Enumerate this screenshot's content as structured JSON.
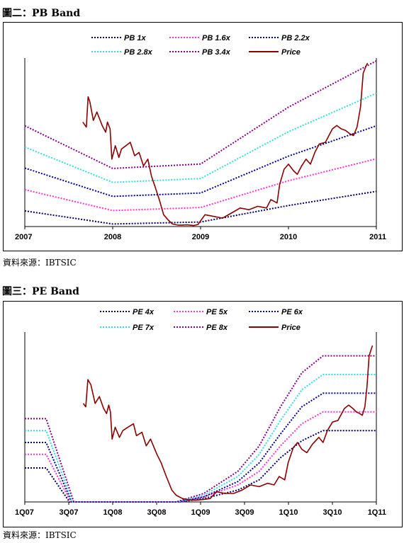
{
  "figures": [
    {
      "title": "圖二：PB Band",
      "source": "資料來源：IBTSIC"
    },
    {
      "title": "圖三：PE Band",
      "source": "資料來源：IBTSIC"
    }
  ],
  "chart_data": [
    {
      "type": "line",
      "title": "圖二：PB Band",
      "x_ticks": [
        "2007",
        "2008",
        "2009",
        "2010",
        "2011"
      ],
      "x_range": [
        2007.0,
        2011.0
      ],
      "y_ticks": [],
      "legend_position": "top",
      "series": [
        {
          "name": "PB 1x",
          "color": "#000066",
          "style": "dotted",
          "points": [
            [
              2007.0,
              0.093
            ],
            [
              2008.0,
              0.015
            ],
            [
              2009.0,
              0.027
            ],
            [
              2010.0,
              0.125
            ],
            [
              2011.0,
              0.209
            ]
          ]
        },
        {
          "name": "PB 1.6x",
          "color": "#ff33cc",
          "style": "dotted",
          "points": [
            [
              2007.0,
              0.219
            ],
            [
              2008.0,
              0.095
            ],
            [
              2009.0,
              0.113
            ],
            [
              2010.0,
              0.272
            ],
            [
              2011.0,
              0.402
            ]
          ]
        },
        {
          "name": "PB 2.2x",
          "color": "#000099",
          "style": "dotted",
          "points": [
            [
              2007.0,
              0.347
            ],
            [
              2008.0,
              0.179
            ],
            [
              2009.0,
              0.199
            ],
            [
              2010.0,
              0.418
            ],
            [
              2011.0,
              0.598
            ]
          ]
        },
        {
          "name": "PB 2.8x",
          "color": "#33dddd",
          "style": "dotted",
          "points": [
            [
              2007.0,
              0.472
            ],
            [
              2008.0,
              0.262
            ],
            [
              2009.0,
              0.285
            ],
            [
              2010.0,
              0.563
            ],
            [
              2011.0,
              0.791
            ]
          ]
        },
        {
          "name": "PB 3.4x",
          "color": "#880088",
          "style": "dotted",
          "points": [
            [
              2007.0,
              0.598
            ],
            [
              2008.0,
              0.345
            ],
            [
              2009.0,
              0.371
            ],
            [
              2010.0,
              0.709
            ],
            [
              2011.0,
              0.983
            ]
          ]
        },
        {
          "name": "Price",
          "color": "#8b0000",
          "style": "solid",
          "points": [
            [
              2007.66,
              0.62
            ],
            [
              2007.7,
              0.59
            ],
            [
              2007.72,
              0.77
            ],
            [
              2007.74,
              0.74
            ],
            [
              2007.78,
              0.63
            ],
            [
              2007.82,
              0.68
            ],
            [
              2007.88,
              0.6
            ],
            [
              2007.92,
              0.56
            ],
            [
              2007.94,
              0.62
            ],
            [
              2007.97,
              0.58
            ],
            [
              2007.99,
              0.4
            ],
            [
              2008.03,
              0.48
            ],
            [
              2008.07,
              0.41
            ],
            [
              2008.1,
              0.46
            ],
            [
              2008.15,
              0.48
            ],
            [
              2008.2,
              0.5
            ],
            [
              2008.25,
              0.42
            ],
            [
              2008.3,
              0.44
            ],
            [
              2008.35,
              0.36
            ],
            [
              2008.4,
              0.4
            ],
            [
              2008.44,
              0.3
            ],
            [
              2008.48,
              0.24
            ],
            [
              2008.53,
              0.16
            ],
            [
              2008.58,
              0.07
            ],
            [
              2008.63,
              0.04
            ],
            [
              2008.68,
              0.015
            ],
            [
              2008.75,
              0.008
            ],
            [
              2008.85,
              0.01
            ],
            [
              2008.92,
              0.006
            ],
            [
              2008.97,
              0.012
            ],
            [
              2009.05,
              0.07
            ],
            [
              2009.15,
              0.06
            ],
            [
              2009.25,
              0.05
            ],
            [
              2009.35,
              0.08
            ],
            [
              2009.45,
              0.11
            ],
            [
              2009.55,
              0.1
            ],
            [
              2009.65,
              0.12
            ],
            [
              2009.75,
              0.11
            ],
            [
              2009.8,
              0.16
            ],
            [
              2009.87,
              0.14
            ],
            [
              2009.9,
              0.25
            ],
            [
              2009.95,
              0.34
            ],
            [
              2010.0,
              0.37
            ],
            [
              2010.06,
              0.33
            ],
            [
              2010.1,
              0.31
            ],
            [
              2010.15,
              0.36
            ],
            [
              2010.2,
              0.4
            ],
            [
              2010.25,
              0.37
            ],
            [
              2010.3,
              0.44
            ],
            [
              2010.35,
              0.49
            ],
            [
              2010.42,
              0.5
            ],
            [
              2010.5,
              0.58
            ],
            [
              2010.55,
              0.6
            ],
            [
              2010.6,
              0.58
            ],
            [
              2010.65,
              0.57
            ],
            [
              2010.7,
              0.55
            ],
            [
              2010.74,
              0.54
            ],
            [
              2010.78,
              0.59
            ],
            [
              2010.82,
              0.71
            ],
            [
              2010.85,
              0.91
            ],
            [
              2010.88,
              0.95
            ],
            [
              2010.9,
              0.97
            ]
          ]
        }
      ]
    },
    {
      "type": "line",
      "title": "圖三：PE Band",
      "x_ticks": [
        "1Q07",
        "3Q07",
        "1Q08",
        "3Q08",
        "1Q09",
        "3Q09",
        "1Q10",
        "3Q10",
        "1Q11"
      ],
      "x_range": [
        0.0,
        8.25
      ],
      "y_ticks": [],
      "legend_position": "top",
      "series": [
        {
          "name": "PE 4x",
          "color": "#000066",
          "style": "dotted",
          "points": [
            [
              0.0,
              0.2
            ],
            [
              0.5,
              0.2
            ],
            [
              1.05,
              0.0
            ],
            [
              3.65,
              0.0
            ],
            [
              4.2,
              0.02
            ],
            [
              5.0,
              0.07
            ],
            [
              5.5,
              0.13
            ],
            [
              6.0,
              0.26
            ],
            [
              6.5,
              0.36
            ],
            [
              7.0,
              0.42
            ],
            [
              8.25,
              0.42
            ]
          ]
        },
        {
          "name": "PE 5x",
          "color": "#ff33cc",
          "style": "dotted",
          "points": [
            [
              0.0,
              0.28
            ],
            [
              0.5,
              0.28
            ],
            [
              1.08,
              0.0
            ],
            [
              3.62,
              0.0
            ],
            [
              4.2,
              0.03
            ],
            [
              5.0,
              0.1
            ],
            [
              5.5,
              0.18
            ],
            [
              6.0,
              0.33
            ],
            [
              6.5,
              0.46
            ],
            [
              7.0,
              0.53
            ],
            [
              8.25,
              0.53
            ]
          ]
        },
        {
          "name": "PE 6x",
          "color": "#000099",
          "style": "dotted",
          "points": [
            [
              0.0,
              0.35
            ],
            [
              0.5,
              0.35
            ],
            [
              1.1,
              0.0
            ],
            [
              3.6,
              0.0
            ],
            [
              4.2,
              0.03
            ],
            [
              5.0,
              0.12
            ],
            [
              5.5,
              0.23
            ],
            [
              6.0,
              0.4
            ],
            [
              6.5,
              0.56
            ],
            [
              7.0,
              0.64
            ],
            [
              8.25,
              0.64
            ]
          ]
        },
        {
          "name": "PE 7x",
          "color": "#33dddd",
          "style": "dotted",
          "points": [
            [
              0.0,
              0.42
            ],
            [
              0.5,
              0.42
            ],
            [
              1.12,
              0.0
            ],
            [
              3.58,
              0.0
            ],
            [
              4.2,
              0.04
            ],
            [
              5.0,
              0.15
            ],
            [
              5.5,
              0.28
            ],
            [
              6.0,
              0.48
            ],
            [
              6.5,
              0.66
            ],
            [
              7.0,
              0.75
            ],
            [
              8.25,
              0.75
            ]
          ]
        },
        {
          "name": "PE 8x",
          "color": "#880088",
          "style": "dotted",
          "points": [
            [
              0.0,
              0.49
            ],
            [
              0.5,
              0.49
            ],
            [
              1.15,
              0.0
            ],
            [
              3.55,
              0.0
            ],
            [
              4.2,
              0.05
            ],
            [
              5.0,
              0.18
            ],
            [
              5.5,
              0.33
            ],
            [
              6.0,
              0.56
            ],
            [
              6.5,
              0.76
            ],
            [
              7.0,
              0.86
            ],
            [
              8.25,
              0.86
            ]
          ]
        },
        {
          "name": "Price",
          "color": "#8b0000",
          "style": "solid",
          "points": [
            [
              1.37,
              0.58
            ],
            [
              1.43,
              0.56
            ],
            [
              1.48,
              0.72
            ],
            [
              1.55,
              0.69
            ],
            [
              1.65,
              0.58
            ],
            [
              1.75,
              0.62
            ],
            [
              1.85,
              0.55
            ],
            [
              1.92,
              0.52
            ],
            [
              1.97,
              0.57
            ],
            [
              2.01,
              0.53
            ],
            [
              2.05,
              0.37
            ],
            [
              2.12,
              0.44
            ],
            [
              2.22,
              0.38
            ],
            [
              2.3,
              0.42
            ],
            [
              2.42,
              0.44
            ],
            [
              2.55,
              0.46
            ],
            [
              2.62,
              0.39
            ],
            [
              2.75,
              0.41
            ],
            [
              2.85,
              0.33
            ],
            [
              2.95,
              0.37
            ],
            [
              3.1,
              0.28
            ],
            [
              3.2,
              0.23
            ],
            [
              3.32,
              0.15
            ],
            [
              3.45,
              0.07
            ],
            [
              3.55,
              0.04
            ],
            [
              3.7,
              0.02
            ],
            [
              3.85,
              0.012
            ],
            [
              4.0,
              0.01
            ],
            [
              4.2,
              0.015
            ],
            [
              4.35,
              0.02
            ],
            [
              4.5,
              0.06
            ],
            [
              4.7,
              0.05
            ],
            [
              4.9,
              0.05
            ],
            [
              5.1,
              0.07
            ],
            [
              5.3,
              0.1
            ],
            [
              5.5,
              0.09
            ],
            [
              5.7,
              0.11
            ],
            [
              5.85,
              0.1
            ],
            [
              5.97,
              0.15
            ],
            [
              6.1,
              0.13
            ],
            [
              6.18,
              0.23
            ],
            [
              6.3,
              0.32
            ],
            [
              6.4,
              0.35
            ],
            [
              6.5,
              0.31
            ],
            [
              6.62,
              0.29
            ],
            [
              6.75,
              0.34
            ],
            [
              6.9,
              0.38
            ],
            [
              7.0,
              0.35
            ],
            [
              7.1,
              0.42
            ],
            [
              7.22,
              0.47
            ],
            [
              7.35,
              0.48
            ],
            [
              7.5,
              0.55
            ],
            [
              7.6,
              0.57
            ],
            [
              7.7,
              0.55
            ],
            [
              7.78,
              0.53
            ],
            [
              7.86,
              0.52
            ],
            [
              7.92,
              0.51
            ],
            [
              7.98,
              0.56
            ],
            [
              8.03,
              0.68
            ],
            [
              8.08,
              0.86
            ],
            [
              8.13,
              0.9
            ],
            [
              8.16,
              0.92
            ]
          ]
        }
      ]
    }
  ]
}
